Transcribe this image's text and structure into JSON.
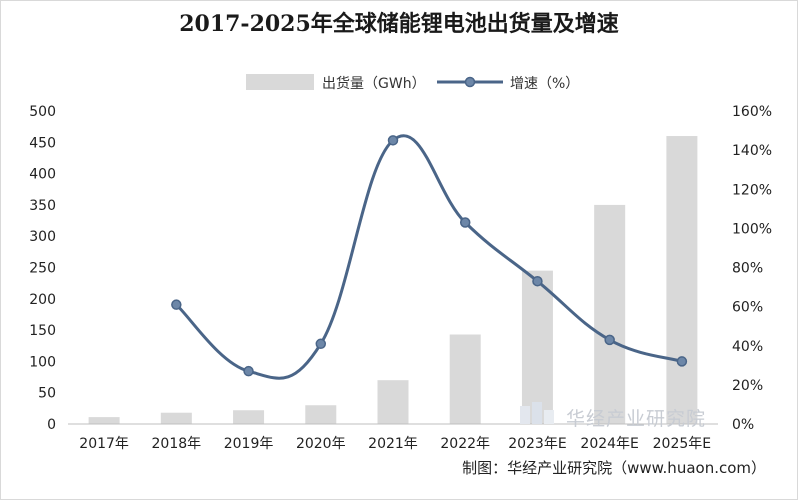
{
  "chart_data": {
    "type": "bar",
    "title": "2017-2025年全球储能锂电池出货量及增速",
    "categories": [
      "2017年",
      "2018年",
      "2019年",
      "2020年",
      "2021年",
      "2022年",
      "2023年E",
      "2024年E",
      "2025年E"
    ],
    "series": [
      {
        "name": "出货量（GWh）",
        "type": "bar",
        "axis": "left",
        "color": "#d9d9d9",
        "values": [
          11,
          18,
          22,
          30,
          70,
          143,
          245,
          350,
          460
        ]
      },
      {
        "name": "增速（%）",
        "type": "line",
        "axis": "right",
        "color": "#4a6588",
        "values": [
          null,
          61,
          27,
          41,
          145,
          103,
          73,
          43,
          32
        ]
      }
    ],
    "y_left": {
      "min": 0,
      "max": 500,
      "ticks": [
        0,
        50,
        100,
        150,
        200,
        250,
        300,
        350,
        400,
        450,
        500
      ]
    },
    "y_right": {
      "min": 0,
      "max": 160,
      "ticks": [
        "0%",
        "20%",
        "40%",
        "60%",
        "80%",
        "100%",
        "120%",
        "140%",
        "160%"
      ]
    },
    "legend_position": "top-center",
    "grid": false
  },
  "source": "制图：华经产业研究院（www.huaon.com）",
  "watermark": "华经产业研究院"
}
